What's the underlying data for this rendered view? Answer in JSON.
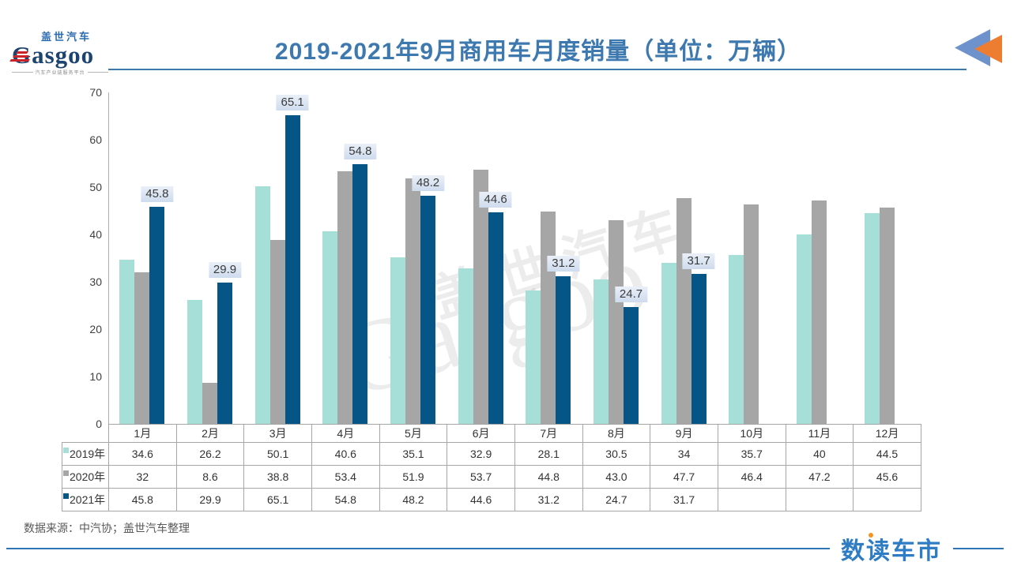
{
  "header": {
    "logo": {
      "brand_cn": "盖世汽车",
      "brand_en": "Gasgoo",
      "tagline": "汽车产业链服务平台"
    },
    "title": "2019-2021年9月商用车月度销量（单位：万辆）"
  },
  "watermark": {
    "line1": "盖世汽车",
    "line2": "Gasgoo"
  },
  "chart_data": {
    "type": "bar",
    "title": "2019-2021年9月商用车月度销量",
    "unit": "万辆",
    "categories": [
      "1月",
      "2月",
      "3月",
      "4月",
      "5月",
      "6月",
      "7月",
      "8月",
      "9月",
      "10月",
      "11月",
      "12月"
    ],
    "series": [
      {
        "name": "2019年",
        "color": "#a6dfd7",
        "values": [
          34.6,
          26.2,
          50.1,
          40.6,
          35.1,
          32.9,
          28.1,
          30.5,
          34,
          35.7,
          40,
          44.5
        ],
        "display": [
          "34.6",
          "26.2",
          "50.1",
          "40.6",
          "35.1",
          "32.9",
          "28.1",
          "30.5",
          "34",
          "35.7",
          "40",
          "44.5"
        ],
        "data_labels": false
      },
      {
        "name": "2020年",
        "color": "#a6a6a6",
        "values": [
          32,
          8.6,
          38.8,
          53.4,
          51.9,
          53.7,
          44.8,
          43.0,
          47.7,
          46.4,
          47.2,
          45.6
        ],
        "display": [
          "32",
          "8.6",
          "38.8",
          "53.4",
          "51.9",
          "53.7",
          "44.8",
          "43.0",
          "47.7",
          "46.4",
          "47.2",
          "45.6"
        ],
        "data_labels": false
      },
      {
        "name": "2021年",
        "color": "#055587",
        "values": [
          45.8,
          29.9,
          65.1,
          54.8,
          48.2,
          44.6,
          31.2,
          24.7,
          31.7,
          null,
          null,
          null
        ],
        "display": [
          "45.8",
          "29.9",
          "65.1",
          "54.8",
          "48.2",
          "44.6",
          "31.2",
          "24.7",
          "31.7",
          "",
          "",
          ""
        ],
        "data_labels": true
      }
    ],
    "ylim": [
      0,
      70
    ],
    "yticks": [
      0,
      10,
      20,
      30,
      40,
      50,
      60,
      70
    ],
    "grid": false,
    "legend_position": "data-table-left",
    "data_table": true,
    "label_bg": "#d9e3f1"
  },
  "footer": {
    "source": "数据来源：中汽协；盖世汽车整理",
    "brand": "数读车市"
  }
}
